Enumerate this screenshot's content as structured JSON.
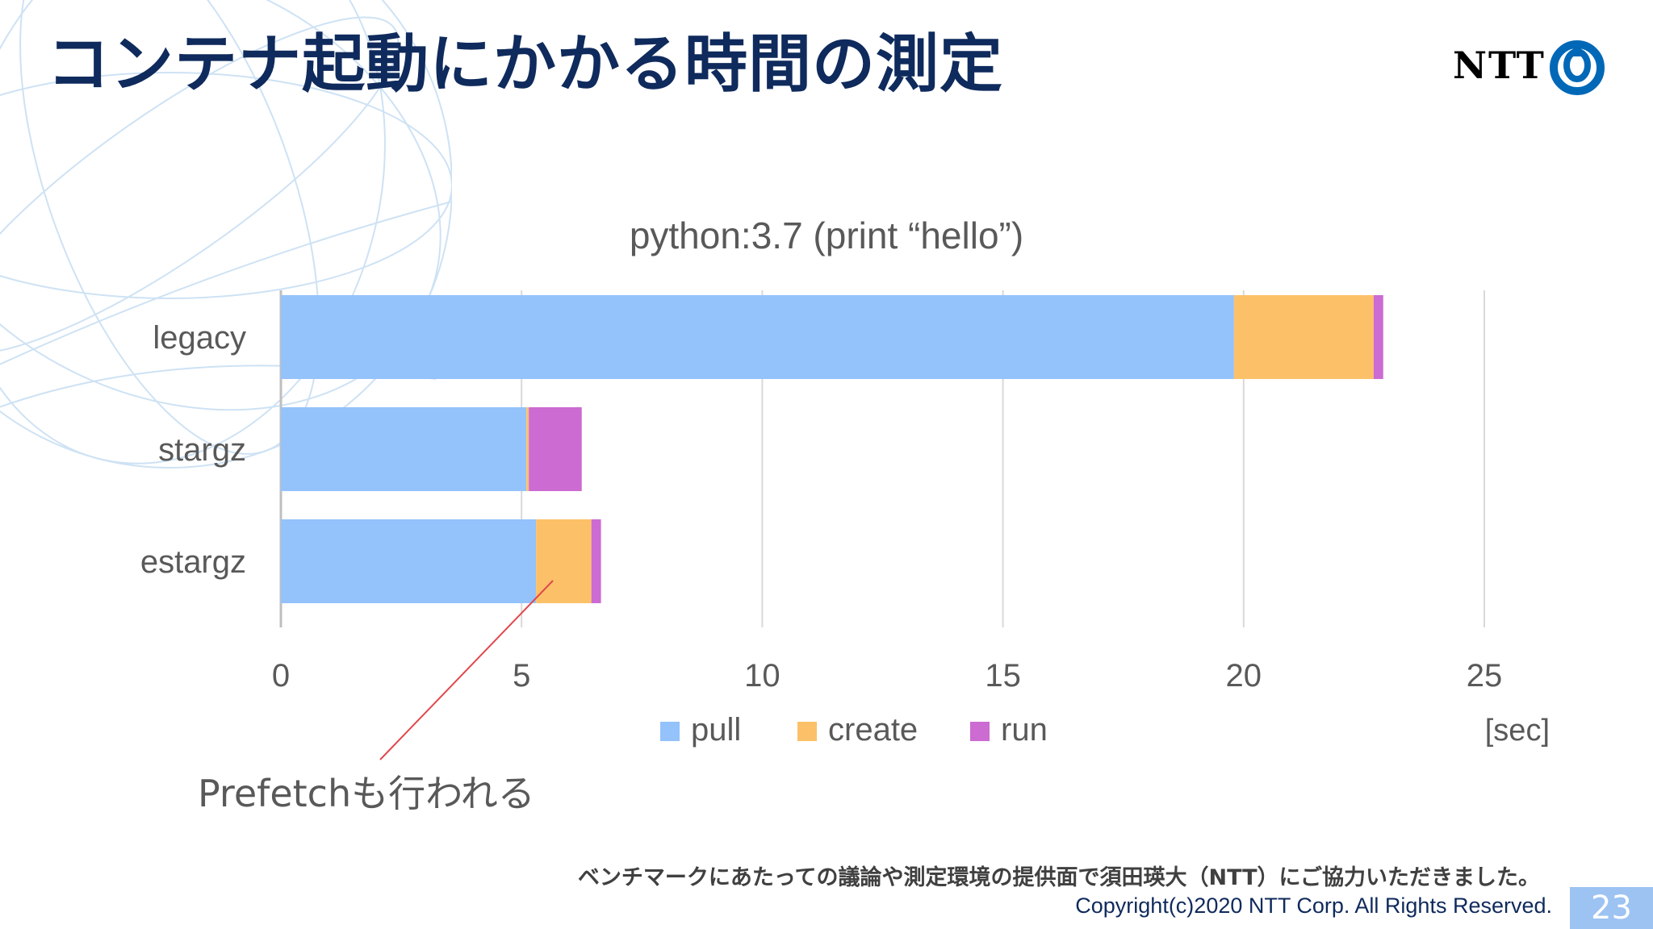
{
  "slide": {
    "title": "コンテナ起動にかかる時間の測定",
    "logo_text": "NTT",
    "annotation": "Prefetchも行われる",
    "note": "ベンチマークにあたっての議論や測定環境の提供面で須田瑛大（NTT）にご協力いただきました。",
    "copyright": "Copyright(c)2020 NTT Corp. All Rights Reserved.",
    "page_number": "23"
  },
  "colors": {
    "title": "#0f2a5c",
    "pull": "#94c2fb",
    "create": "#fcc168",
    "run": "#cc6bd1",
    "annotation_line": "#e0484d",
    "logo_blue": "#0068b7"
  },
  "icons": {
    "logo": "ntt-logo-icon",
    "background": "globe-wireframe-icon"
  },
  "chart_data": {
    "type": "bar",
    "orientation": "horizontal",
    "stacked": true,
    "title": "python:3.7 (print “hello”)",
    "categories": [
      "legacy",
      "stargz",
      "estargz"
    ],
    "series": [
      {
        "name": "pull",
        "values": [
          19.8,
          5.1,
          5.3
        ]
      },
      {
        "name": "create",
        "values": [
          2.9,
          0.05,
          1.15
        ]
      },
      {
        "name": "run",
        "values": [
          0.2,
          1.1,
          0.2
        ]
      }
    ],
    "xlabel": "[sec]",
    "ylabel": "",
    "xlim": [
      0,
      25
    ],
    "xticks": [
      "0",
      "5",
      "10",
      "15",
      "20",
      "25"
    ],
    "grid": "vertical",
    "legend": "bottom"
  }
}
